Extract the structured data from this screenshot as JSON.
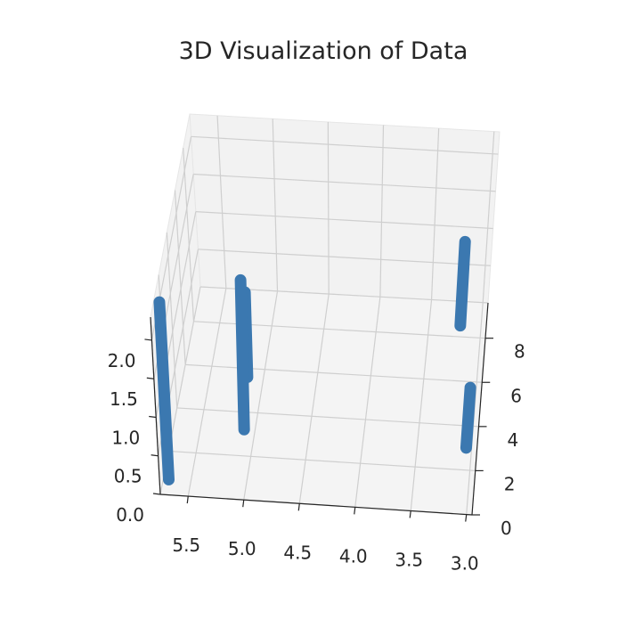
{
  "chart_data": {
    "type": "scatter3d",
    "title": "3D Visualization of Data",
    "xlabel": "",
    "ylabel": "",
    "zlabel": "",
    "xlim": [
      2.95,
      5.75
    ],
    "ylim": [
      0,
      9.6
    ],
    "zlim": [
      0,
      2.3
    ],
    "grid": true,
    "x_ticks": [
      "5.5",
      "5.0",
      "4.5",
      "4.0",
      "3.5",
      "3.0"
    ],
    "y_ticks": [
      "0",
      "2",
      "4",
      "6",
      "8"
    ],
    "z_ticks": [
      "0.0",
      "0.5",
      "1.0",
      "1.5",
      "2.0"
    ],
    "marker_color": "#3b78b0",
    "series": [
      {
        "x": 5.7,
        "y": 0.7,
        "z_range": [
          0.0,
          2.3
        ]
      },
      {
        "x": 5.15,
        "y": 5.6,
        "z_range": [
          0.0,
          1.1
        ]
      },
      {
        "x": 5.1,
        "y": 3.2,
        "z_range": [
          0.0,
          1.9
        ]
      },
      {
        "x": 3.2,
        "y": 8.5,
        "z_range": [
          0.0,
          1.1
        ]
      },
      {
        "x": 3.05,
        "y": 3.0,
        "z_range": [
          0.0,
          0.7
        ]
      }
    ]
  }
}
